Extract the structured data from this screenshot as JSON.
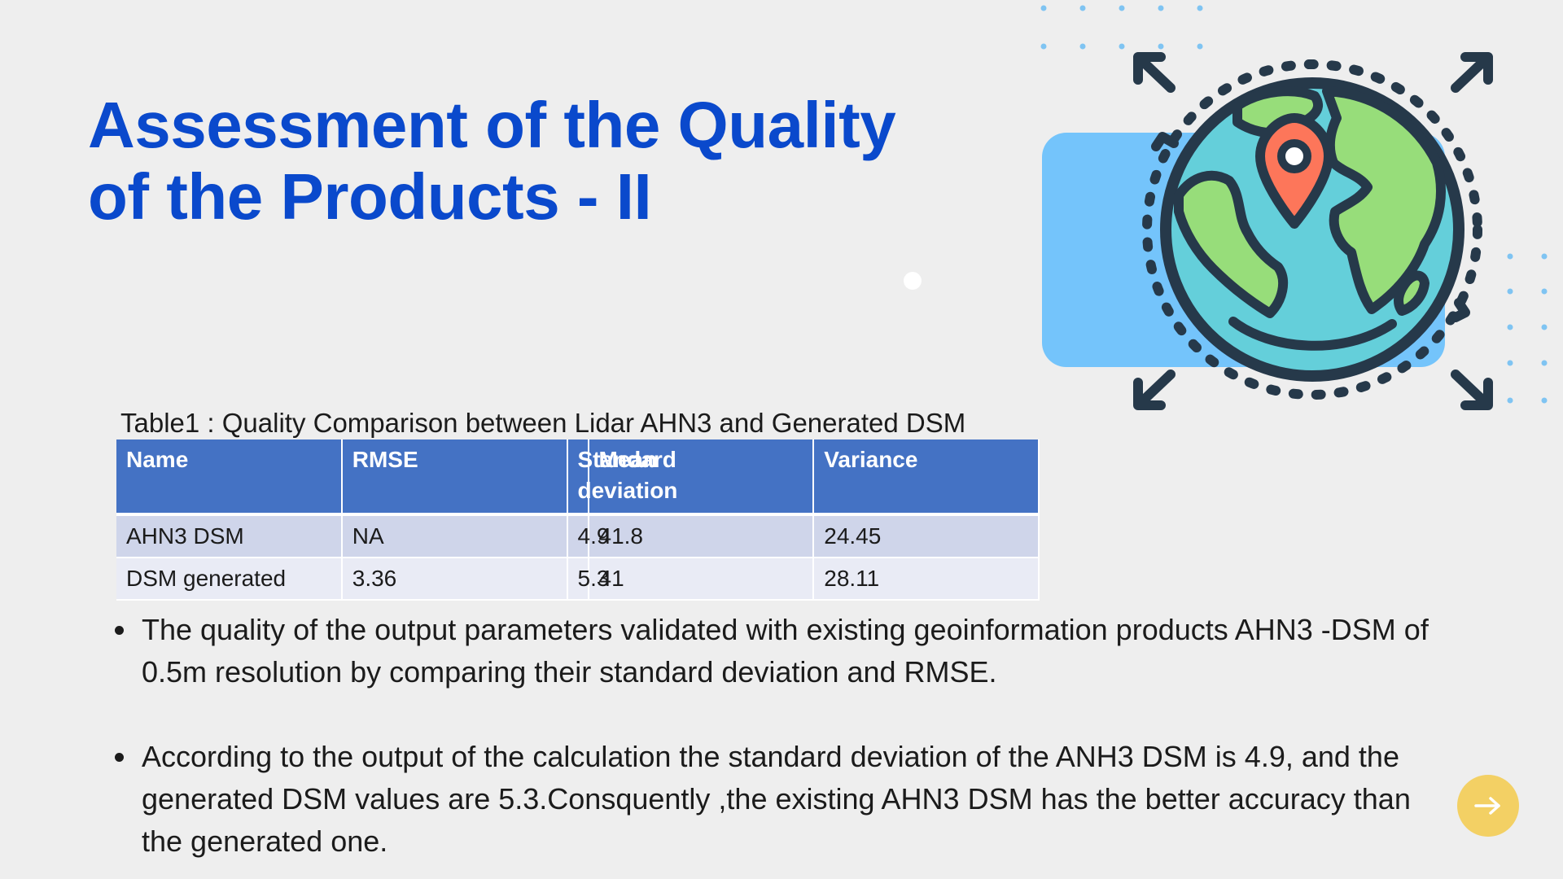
{
  "slide": {
    "title_line1": "Assessment of the Quality",
    "title_line2": "of the Products - II"
  },
  "table": {
    "caption": "Table1 : Quality Comparison between Lidar AHN3 and Generated DSM",
    "headers": [
      "Name",
      "RMSE",
      "Standard deviation",
      "Mean",
      "Variance"
    ],
    "rows": [
      [
        "AHN3 DSM",
        "NA",
        "4.9",
        "41.8",
        "24.45"
      ],
      [
        "DSM generated",
        "3.36",
        "5.3",
        "41",
        "28.11"
      ]
    ]
  },
  "bullets": [
    "The quality of the output parameters validated with existing geoinformation products AHN3 -DSM of 0.5m resolution by comparing their standard deviation and RMSE.",
    "According to the output of the calculation the standard deviation of the ANH3 DSM is 4.9, and the generated DSM values are 5.3.Consquently ,the existing AHN3 DSM has the better accuracy than the generated one."
  ],
  "icons": {
    "illustration": "globe-location-icon",
    "next": "arrow-right-icon"
  },
  "colors": {
    "title": "#0a49cc",
    "table_header": "#4472c4",
    "row_odd": "#cfd5ea",
    "row_even": "#e9ebf5",
    "next_button": "#f3d064",
    "blue_panel": "#74c4fb",
    "globe_ocean": "#64cfda",
    "globe_land": "#97dd7a",
    "pin": "#fd765a",
    "outline": "#26394a"
  }
}
